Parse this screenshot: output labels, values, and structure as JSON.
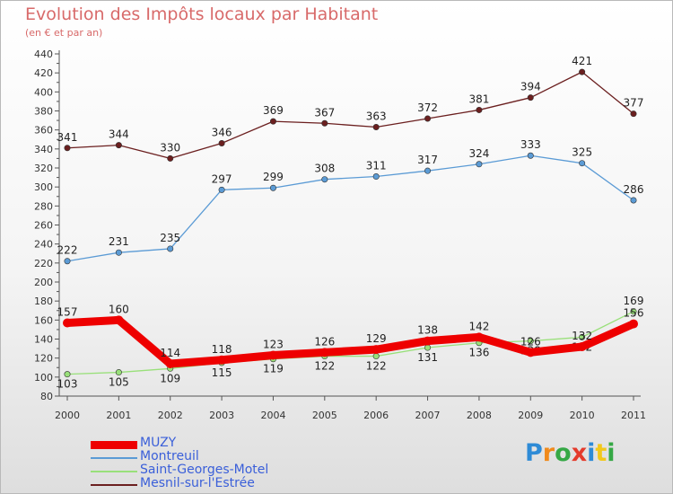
{
  "title": "Evolution des Impôts locaux par Habitant",
  "subtitle": "(en € et par an)",
  "logo_text": "Proxiti",
  "chart_data": {
    "type": "line",
    "x": [
      "2000",
      "2001",
      "2002",
      "2003",
      "2004",
      "2005",
      "2006",
      "2007",
      "2008",
      "2009",
      "2010",
      "2011"
    ],
    "ylim": [
      80,
      440
    ],
    "yticks": [
      80,
      100,
      120,
      140,
      160,
      180,
      200,
      220,
      240,
      260,
      280,
      300,
      320,
      340,
      360,
      380,
      400,
      420,
      440
    ],
    "grid": false,
    "legend_position": "bottom-left",
    "series": [
      {
        "name": "Mesnil-sur-l'Estrée",
        "color": "#6b1f1f",
        "values": [
          341,
          344,
          330,
          346,
          369,
          367,
          363,
          372,
          381,
          394,
          421,
          377
        ]
      },
      {
        "name": "Montreuil",
        "color": "#5b9bd5",
        "values": [
          222,
          231,
          235,
          297,
          299,
          308,
          311,
          317,
          324,
          333,
          325,
          286
        ]
      },
      {
        "name": "Saint-Georges-Motel",
        "color": "#99e07a",
        "values": [
          103,
          105,
          109,
          115,
          119,
          122,
          122,
          131,
          136,
          138,
          142,
          169
        ]
      },
      {
        "name": "MUZY",
        "color": "#ee0000",
        "values": [
          157,
          160,
          114,
          118,
          123,
          126,
          129,
          138,
          142,
          126,
          132,
          156
        ]
      }
    ]
  }
}
